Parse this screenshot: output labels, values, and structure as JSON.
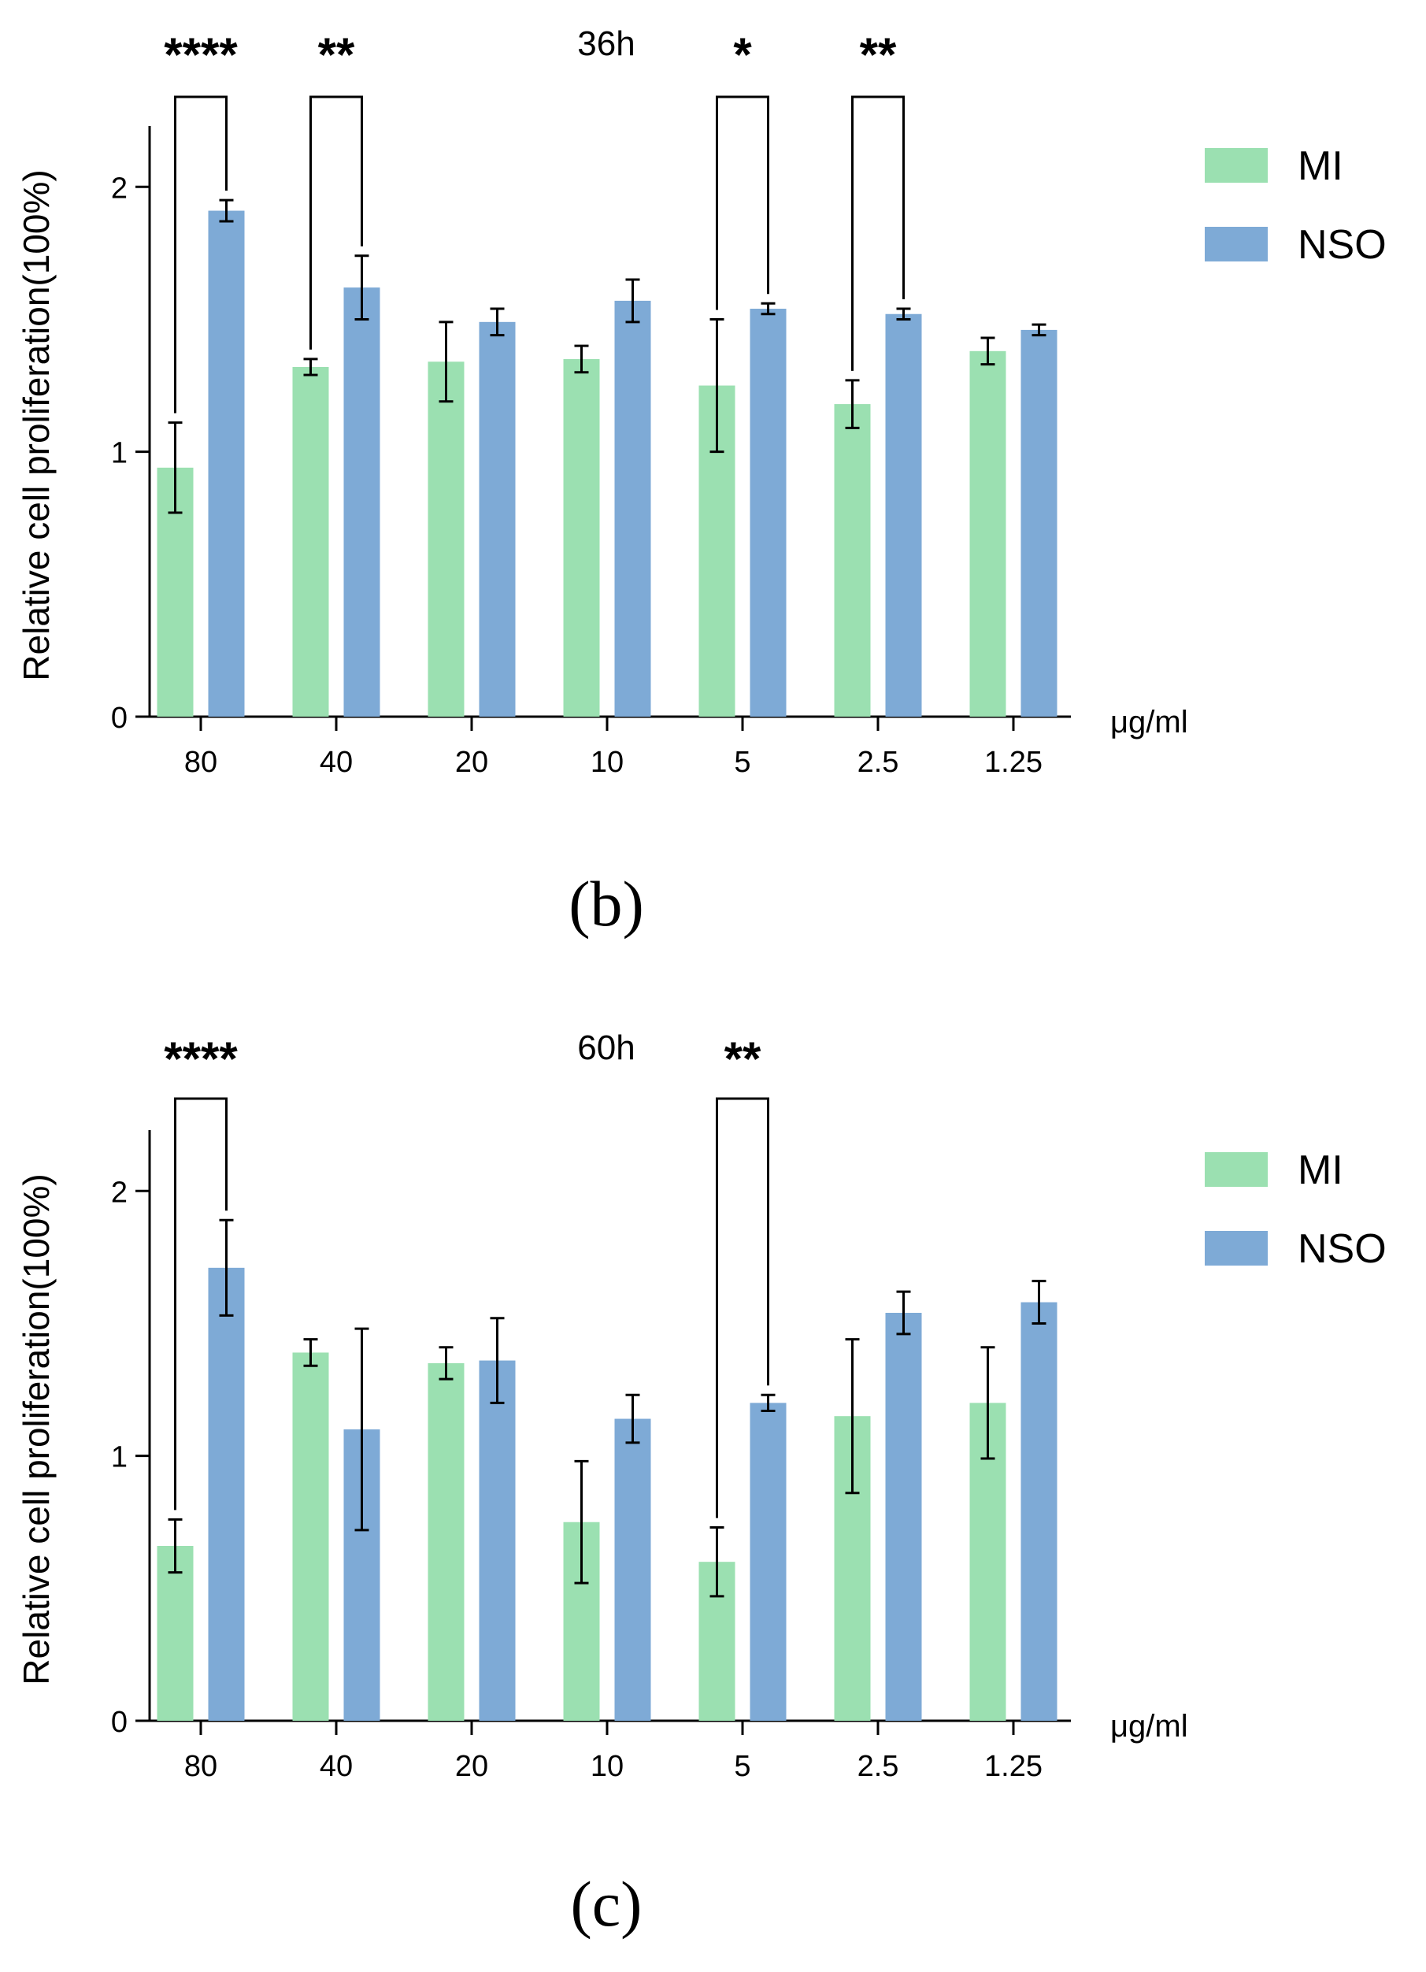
{
  "colors": {
    "mi": "#9be0b1",
    "nso": "#7eaad6",
    "axis": "#000000",
    "text": "#000000"
  },
  "chart_data": [
    {
      "type": "bar",
      "title": "36h",
      "panel_label": "(b)",
      "ylabel": "Relative cell proliferation(100%)",
      "xlabel": "μg/ml",
      "ylim": [
        0,
        2.2
      ],
      "yticks": [
        0,
        1,
        2
      ],
      "categories": [
        "80",
        "40",
        "20",
        "10",
        "5",
        "2.5",
        "1.25"
      ],
      "series": [
        {
          "name": "MI",
          "values": [
            0.94,
            1.32,
            1.34,
            1.35,
            1.25,
            1.18,
            1.38
          ],
          "errors": [
            0.17,
            0.03,
            0.15,
            0.05,
            0.25,
            0.09,
            0.05
          ]
        },
        {
          "name": "NSO",
          "values": [
            1.91,
            1.62,
            1.49,
            1.57,
            1.54,
            1.52,
            1.46
          ],
          "errors": [
            0.04,
            0.12,
            0.05,
            0.08,
            0.02,
            0.02,
            0.02
          ]
        }
      ],
      "significance": [
        {
          "category": "80",
          "label": "****"
        },
        {
          "category": "40",
          "label": "**"
        },
        {
          "category": "5",
          "label": "*"
        },
        {
          "category": "2.5",
          "label": "**"
        }
      ]
    },
    {
      "type": "bar",
      "title": "60h",
      "panel_label": "(c)",
      "ylabel": "Relative cell proliferation(100%)",
      "xlabel": "μg/ml",
      "ylim": [
        0,
        2.2
      ],
      "yticks": [
        0,
        1,
        2
      ],
      "categories": [
        "80",
        "40",
        "20",
        "10",
        "5",
        "2.5",
        "1.25"
      ],
      "series": [
        {
          "name": "MI",
          "values": [
            0.66,
            1.39,
            1.35,
            0.75,
            0.6,
            1.15,
            1.2
          ],
          "errors": [
            0.1,
            0.05,
            0.06,
            0.23,
            0.13,
            0.29,
            0.21
          ]
        },
        {
          "name": "NSO",
          "values": [
            1.71,
            1.1,
            1.36,
            1.14,
            1.2,
            1.54,
            1.58
          ],
          "errors": [
            0.18,
            0.38,
            0.16,
            0.09,
            0.03,
            0.08,
            0.08
          ]
        }
      ],
      "significance": [
        {
          "category": "80",
          "label": "****"
        },
        {
          "category": "5",
          "label": "**"
        }
      ]
    }
  ]
}
